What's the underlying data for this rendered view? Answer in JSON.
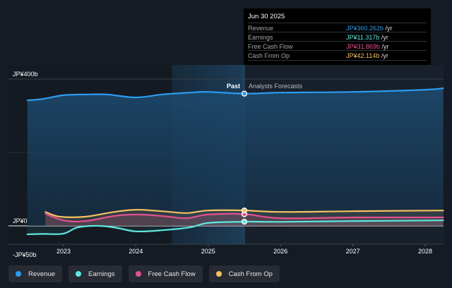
{
  "chart_data": {
    "type": "area",
    "currency": "JP¥",
    "y_unit": "b",
    "ylim": [
      -50,
      400
    ],
    "y_ticks": [
      {
        "value": 400,
        "label": "JP¥400b"
      },
      {
        "value": 0,
        "label": "JP¥0"
      },
      {
        "value": -50,
        "label": "-JP¥50b"
      }
    ],
    "xlim": [
      2022.45,
      2028.25
    ],
    "x_ticks": [
      {
        "value": 2023,
        "label": "2023"
      },
      {
        "value": 2024,
        "label": "2024"
      },
      {
        "value": 2025,
        "label": "2025"
      },
      {
        "value": 2026,
        "label": "2026"
      },
      {
        "value": 2027,
        "label": "2027"
      },
      {
        "value": 2028,
        "label": "2028"
      }
    ],
    "divider": {
      "x": 2025.5,
      "past_label": "Past",
      "forecast_label": "Analysts Forecasts"
    },
    "highlight_range": [
      2024.5,
      2025.5
    ],
    "series": [
      {
        "name": "Revenue",
        "color": "#2d9cf0",
        "x": [
          2022.5,
          2022.72,
          2023.0,
          2023.3,
          2023.6,
          2024.0,
          2024.36,
          2024.75,
          2025.0,
          2025.5,
          2026.0,
          2027.0,
          2028.0,
          2028.25
        ],
        "y": [
          342,
          346,
          356,
          358,
          358,
          350,
          358,
          363,
          365,
          360.262,
          363,
          365,
          371,
          375
        ]
      },
      {
        "name": "Earnings",
        "color": "#5ee8e0",
        "x": [
          2022.5,
          2022.72,
          2023.0,
          2023.2,
          2023.5,
          2023.75,
          2024.0,
          2024.36,
          2024.75,
          2025.0,
          2025.5,
          2026.0,
          2027.0,
          2028.25
        ],
        "y": [
          -23,
          -22,
          -21,
          -4,
          0,
          -6,
          -15,
          -12,
          -4,
          8,
          11.317,
          11,
          13,
          15
        ]
      },
      {
        "name": "Free Cash Flow",
        "color": "#e5508f",
        "x": [
          2022.75,
          2023.0,
          2023.3,
          2023.7,
          2024.0,
          2024.36,
          2024.7,
          2025.0,
          2025.5,
          2026.0,
          2027.0,
          2028.25
        ],
        "y": [
          33,
          15,
          13,
          27,
          31,
          27,
          21,
          31,
          31.869,
          21,
          23,
          23
        ]
      },
      {
        "name": "Cash From Op",
        "color": "#f5c062",
        "x": [
          2022.75,
          2022.95,
          2023.3,
          2023.7,
          2024.0,
          2024.36,
          2024.7,
          2025.0,
          2025.5,
          2026.0,
          2027.0,
          2028.25
        ],
        "y": [
          38,
          25,
          25,
          38,
          44,
          40,
          35,
          42,
          42.114,
          38,
          40,
          42
        ]
      }
    ]
  },
  "tooltip": {
    "date": "Jun 30 2025",
    "rows": [
      {
        "label": "Revenue",
        "value": "JP¥360.262b",
        "unit": " /yr",
        "color": "#2d9cf0"
      },
      {
        "label": "Earnings",
        "value": "JP¥11.317b",
        "unit": " /yr",
        "color": "#5ee8e0"
      },
      {
        "label": "Free Cash Flow",
        "value": "JP¥31.869b",
        "unit": " /yr",
        "color": "#e5508f"
      },
      {
        "label": "Cash From Op",
        "value": "JP¥42.114b",
        "unit": " /yr",
        "color": "#f5c062"
      }
    ]
  },
  "legend": [
    {
      "label": "Revenue",
      "color": "#2d9cf0"
    },
    {
      "label": "Earnings",
      "color": "#5ee8e0"
    },
    {
      "label": "Free Cash Flow",
      "color": "#e5508f"
    },
    {
      "label": "Cash From Op",
      "color": "#f5c062"
    }
  ]
}
